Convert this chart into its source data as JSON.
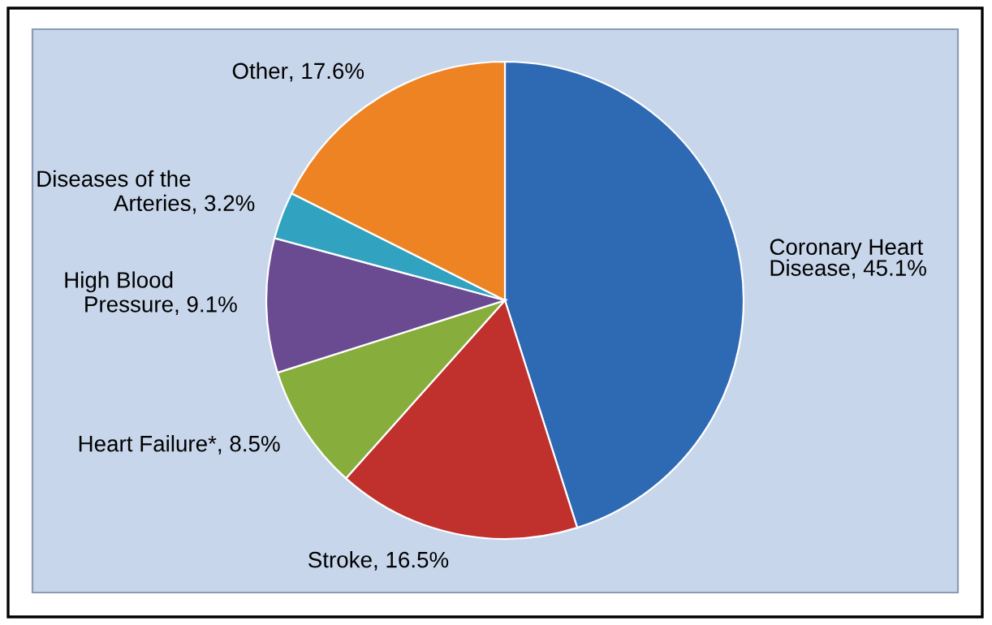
{
  "chart_data": {
    "type": "pie",
    "categories": [
      "Coronary Heart\nDisease",
      "Stroke",
      "Heart Failure*",
      "High Blood\nPressure",
      "Diseases of the\nArteries",
      "Other"
    ],
    "values": [
      45.1,
      16.5,
      8.5,
      9.1,
      3.2,
      17.6
    ],
    "colors": [
      "#2e69b3",
      "#c0302d",
      "#87ad3c",
      "#6a4b92",
      "#31a2bf",
      "#ee8324"
    ],
    "value_labels": [
      ", 45.1%",
      ", 16.5%",
      ", 8.5%",
      ", 9.1%",
      ", 3.2%",
      ", 17.6%"
    ]
  }
}
